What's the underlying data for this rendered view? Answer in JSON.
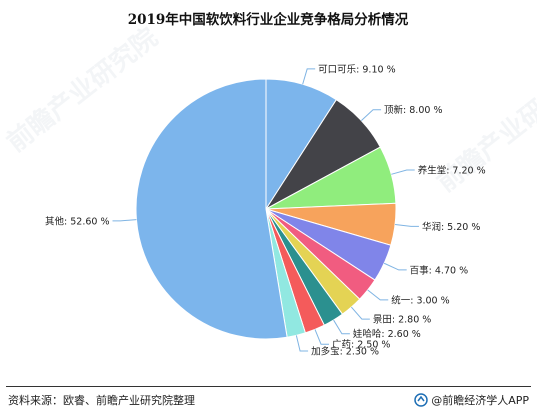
{
  "title": "2019年中国软饮料行业企业竞争格局分析情况",
  "chart_data": {
    "type": "pie",
    "title": "2019年中国软饮料行业企业竞争格局分析情况",
    "unit": "%",
    "slices": [
      {
        "name": "可口可乐",
        "value": 9.1,
        "label": "可口可乐: 9.10 %",
        "color": "#7cb5ec"
      },
      {
        "name": "顶新",
        "value": 8.0,
        "label": "顶新: 8.00 %",
        "color": "#434348"
      },
      {
        "name": "养生堂",
        "value": 7.2,
        "label": "养生堂: 7.20 %",
        "color": "#90ed7d"
      },
      {
        "name": "华润",
        "value": 5.2,
        "label": "华润: 5.20 %",
        "color": "#f7a35c"
      },
      {
        "name": "百事",
        "value": 4.7,
        "label": "百事: 4.70 %",
        "color": "#8085e9"
      },
      {
        "name": "统一",
        "value": 3.0,
        "label": "统一: 3.00 %",
        "color": "#f15c80"
      },
      {
        "name": "景田",
        "value": 2.8,
        "label": "景田: 2.80 %",
        "color": "#e4d354"
      },
      {
        "name": "娃哈哈",
        "value": 2.6,
        "label": "娃哈哈: 2.60 %",
        "color": "#2b908f"
      },
      {
        "name": "广药",
        "value": 2.5,
        "label": "广药: 2.50 %",
        "color": "#f45b5b"
      },
      {
        "name": "加多宝",
        "value": 2.3,
        "label": "加多宝: 2.30 %",
        "color": "#91e8e1"
      },
      {
        "name": "其他",
        "value": 52.6,
        "label": "其他: 52.60 %",
        "color": "#7cb5ec"
      }
    ]
  },
  "footer": {
    "source": "资料来源：欧睿、前瞻产业研究院整理",
    "brand": "@前瞻经济学人APP"
  },
  "watermark": "前瞻产业研究院"
}
